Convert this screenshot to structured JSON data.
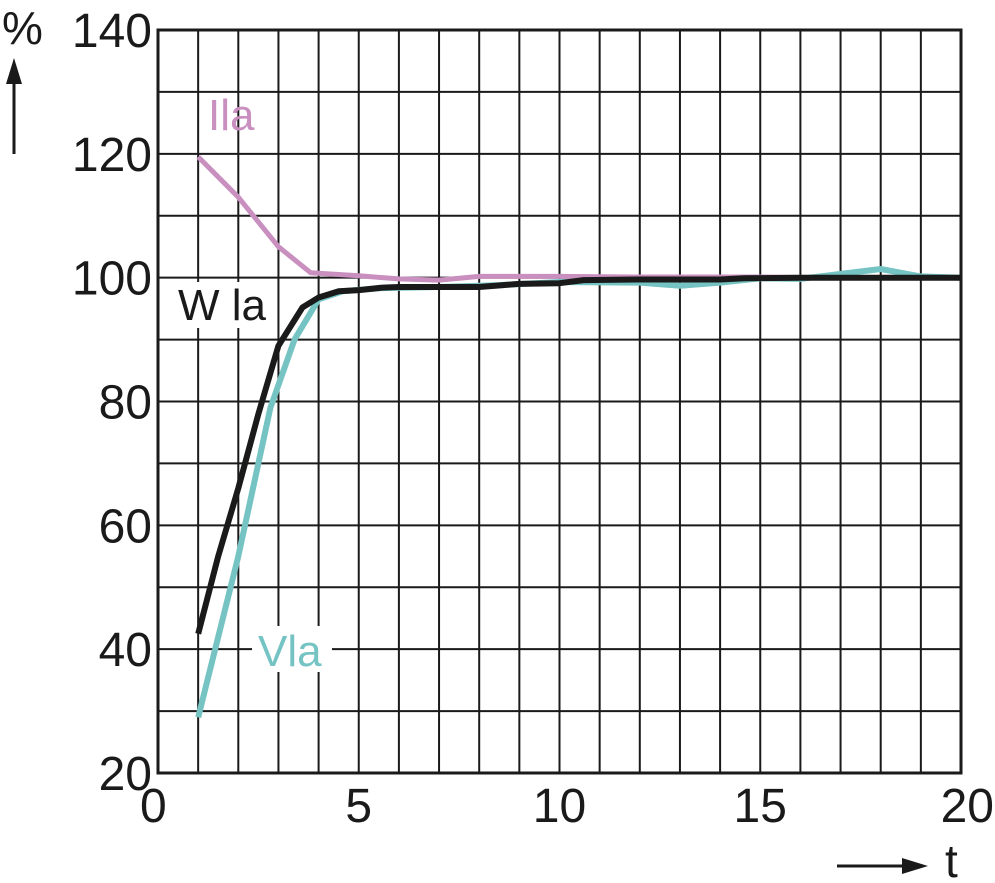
{
  "chart_data": {
    "type": "line",
    "xlabel": "t",
    "ylabel": "%",
    "xlim": [
      0,
      20
    ],
    "ylim": [
      20,
      140
    ],
    "grid": true,
    "x_major_ticks": [
      0,
      5,
      10,
      15,
      20
    ],
    "y_major_ticks": [
      20,
      40,
      60,
      80,
      100,
      120,
      140
    ],
    "x_minor_step": 1,
    "y_minor_step": 10,
    "series": [
      {
        "name": "Ila",
        "color": "#c88fbf",
        "points": [
          [
            1,
            119.5
          ],
          [
            2,
            113
          ],
          [
            3,
            105
          ],
          [
            3.8,
            100.8
          ],
          [
            5,
            100.3
          ],
          [
            6,
            99.8
          ],
          [
            7,
            99.6
          ],
          [
            8,
            100.2
          ],
          [
            10,
            100.2
          ],
          [
            12,
            100.1
          ],
          [
            15,
            100.1
          ],
          [
            17,
            100
          ],
          [
            20,
            100
          ]
        ]
      },
      {
        "name": "Vla",
        "color": "#75c3c3",
        "points": [
          [
            1,
            29
          ],
          [
            2,
            55
          ],
          [
            2.8,
            79
          ],
          [
            3.4,
            90
          ],
          [
            4,
            96.5
          ],
          [
            4.6,
            97.8
          ],
          [
            5.5,
            98.3
          ],
          [
            7,
            98.5
          ],
          [
            8.5,
            98.8
          ],
          [
            10,
            99.3
          ],
          [
            12,
            99.2
          ],
          [
            13,
            98.7
          ],
          [
            14,
            99.2
          ],
          [
            15,
            99.9
          ],
          [
            16,
            99.8
          ],
          [
            18,
            101.4
          ],
          [
            19,
            100.2
          ],
          [
            20,
            100
          ]
        ]
      },
      {
        "name": "W la",
        "color": "#1a1a1a",
        "points": [
          [
            1,
            42.5
          ],
          [
            1.5,
            55
          ],
          [
            2,
            66
          ],
          [
            2.5,
            78
          ],
          [
            3,
            89
          ],
          [
            3.6,
            95.2
          ],
          [
            4,
            96.8
          ],
          [
            4.5,
            97.8
          ],
          [
            5,
            98
          ],
          [
            5.6,
            98.4
          ],
          [
            6,
            98.5
          ],
          [
            7,
            98.5
          ],
          [
            8,
            98.5
          ],
          [
            8.6,
            98.8
          ],
          [
            9,
            99
          ],
          [
            10,
            99.1
          ],
          [
            10.6,
            99.6
          ],
          [
            12,
            99.7
          ],
          [
            14,
            99.7
          ],
          [
            14.6,
            99.9
          ],
          [
            16,
            100
          ],
          [
            18,
            100
          ],
          [
            20,
            100
          ]
        ]
      }
    ]
  }
}
